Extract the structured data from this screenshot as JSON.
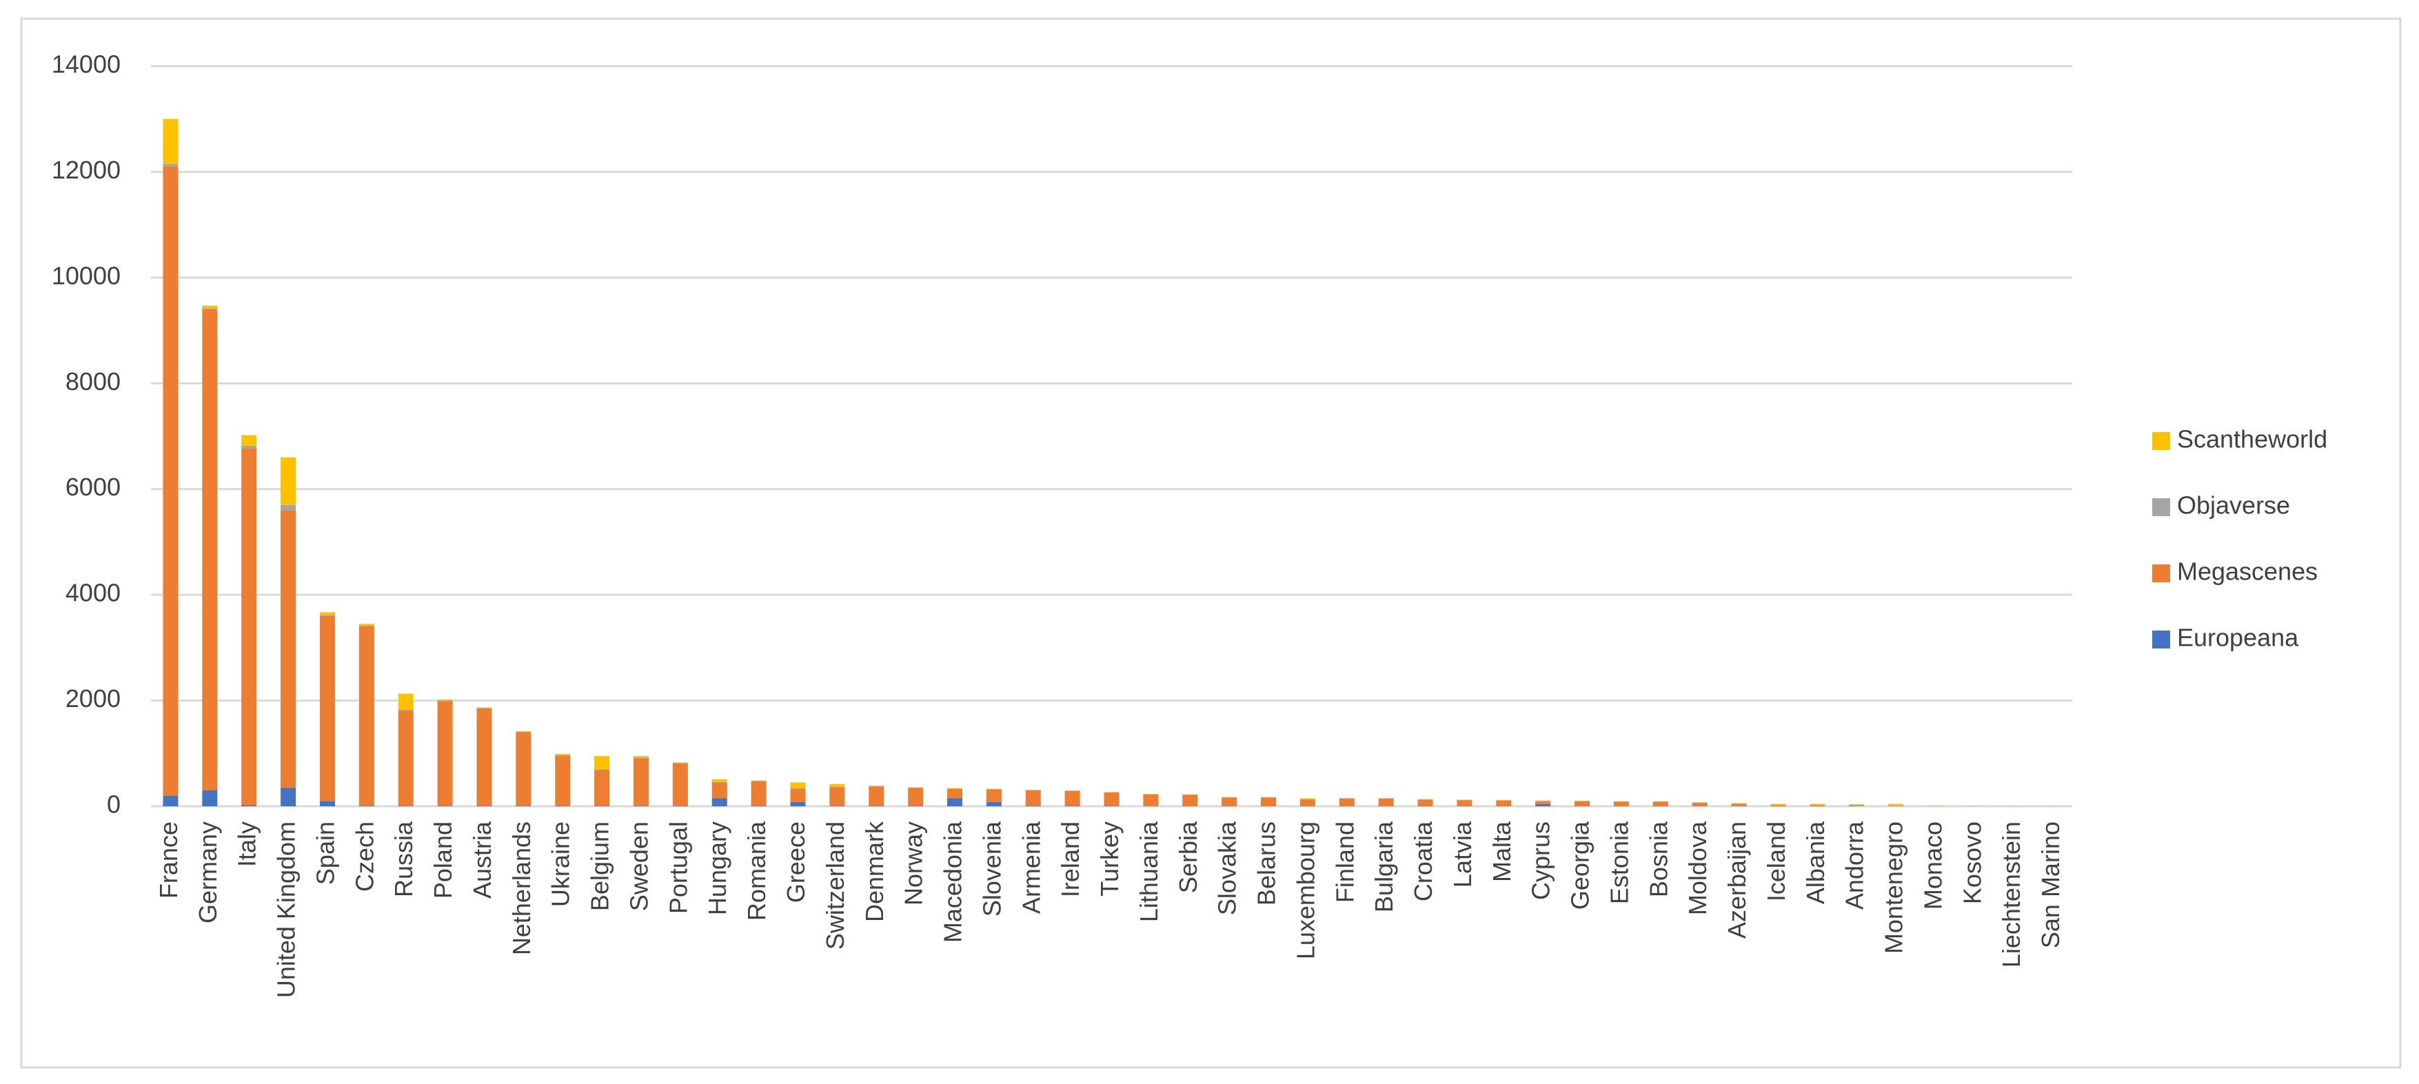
{
  "chart_data": {
    "type": "stacked_bar",
    "categories": [
      "France",
      "Germany",
      "Italy",
      "United Kingdom",
      "Spain",
      "Czech",
      "Russia",
      "Poland",
      "Austria",
      "Netherlands",
      "Ukraine",
      "Belgium",
      "Sweden",
      "Portugal",
      "Hungary",
      "Romania",
      "Greece",
      "Switzerland",
      "Denmark",
      "Norway",
      "Macedonia",
      "Slovenia",
      "Armenia",
      "Ireland",
      "Turkey",
      "Lithuania",
      "Serbia",
      "Slovakia",
      "Belarus",
      "Luxembourg",
      "Finland",
      "Bulgaria",
      "Croatia",
      "Latvia",
      "Malta",
      "Cyprus",
      "Georgia",
      "Estonia",
      "Bosnia",
      "Moldova",
      "Azerbaijan",
      "Iceland",
      "Albania",
      "Andorra",
      "Montenegro",
      "Monaco",
      "Kosovo",
      "Liechtenstein",
      "San Marino"
    ],
    "series": [
      {
        "name": "Europeana",
        "color": "#4472c4",
        "values": [
          200,
          300,
          20,
          350,
          100,
          10,
          10,
          10,
          10,
          10,
          10,
          10,
          10,
          10,
          150,
          10,
          80,
          10,
          10,
          10,
          150,
          80,
          10,
          10,
          10,
          5,
          5,
          5,
          5,
          5,
          5,
          5,
          5,
          5,
          5,
          40,
          5,
          5,
          5,
          5,
          5,
          0,
          0,
          0,
          0,
          0,
          0,
          0,
          0
        ]
      },
      {
        "name": "Megascenes",
        "color": "#ed7d31",
        "values": [
          11900,
          9100,
          6750,
          5250,
          3500,
          3400,
          1800,
          1980,
          1840,
          1390,
          950,
          680,
          900,
          800,
          300,
          460,
          250,
          350,
          360,
          340,
          180,
          240,
          290,
          280,
          250,
          220,
          210,
          160,
          160,
          120,
          140,
          140,
          120,
          110,
          100,
          50,
          90,
          80,
          80,
          60,
          40,
          20,
          20,
          10,
          10,
          5,
          3,
          2,
          2
        ]
      },
      {
        "name": "Objaverse",
        "color": "#a5a5a5",
        "values": [
          50,
          20,
          50,
          100,
          20,
          10,
          20,
          10,
          10,
          10,
          10,
          10,
          10,
          10,
          10,
          10,
          20,
          10,
          10,
          5,
          5,
          5,
          5,
          5,
          5,
          5,
          5,
          5,
          5,
          5,
          5,
          5,
          5,
          5,
          5,
          10,
          5,
          5,
          5,
          5,
          5,
          5,
          5,
          20,
          5,
          0,
          0,
          0,
          0
        ]
      },
      {
        "name": "Scantheworld",
        "color": "#ffc000",
        "values": [
          850,
          50,
          200,
          900,
          50,
          30,
          300,
          20,
          10,
          10,
          20,
          250,
          30,
          10,
          50,
          10,
          100,
          50,
          10,
          5,
          10,
          5,
          5,
          5,
          5,
          5,
          5,
          5,
          5,
          20,
          5,
          5,
          5,
          5,
          10,
          10,
          5,
          5,
          5,
          5,
          10,
          20,
          20,
          10,
          30,
          5,
          0,
          0,
          0
        ]
      }
    ],
    "ylim": [
      0,
      14000
    ],
    "yticks": [
      0,
      2000,
      4000,
      6000,
      8000,
      10000,
      12000,
      14000
    ],
    "grid": true,
    "legend": "right"
  }
}
